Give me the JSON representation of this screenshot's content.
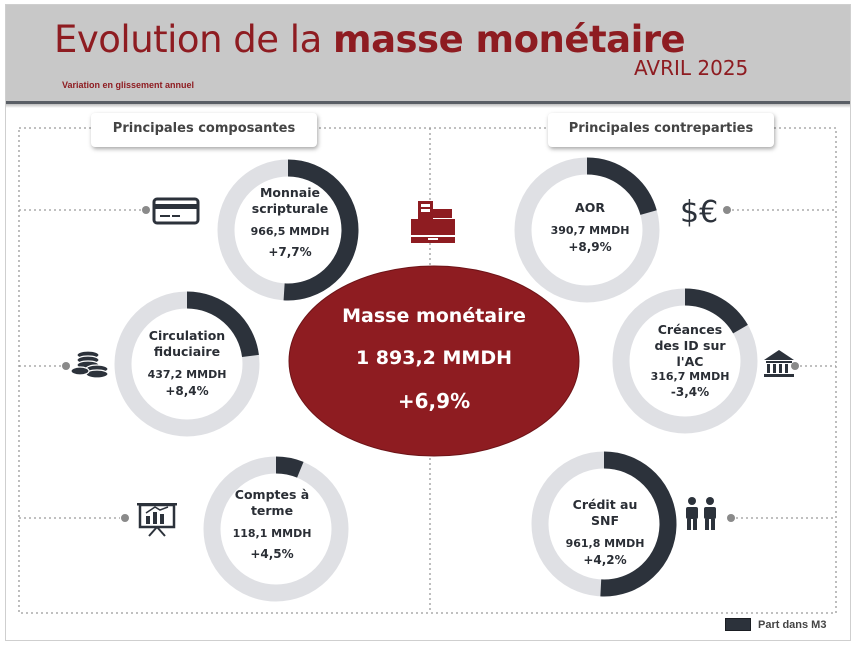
{
  "title_regular": "Evolution de la ",
  "title_bold": "masse monétaire",
  "date": "AVRIL 2025",
  "subtitle": "Variation en glissement annuel",
  "tab_left": "Principales composantes",
  "tab_right": "Principales contreparties",
  "legend_label": "Part dans M3",
  "colors": {
    "accent": "#8e1c21",
    "share": "#2c323b",
    "ring": "#dfe0e4"
  },
  "chart_data": {
    "type": "donut",
    "center": {
      "name": "Masse monétaire",
      "value": "1 893,2 MMDH",
      "growth": "+6,9%"
    },
    "series": [
      {
        "name": "Monnaie scripturale",
        "value_label": "966,5 MMDH",
        "growth": "+7,7%",
        "share": 0.51,
        "icon": "credit-card-icon"
      },
      {
        "name": "Circulation fiduciaire",
        "value_label": "437,2 MMDH",
        "growth": "+8,4%",
        "share": 0.23,
        "icon": "coins-icon"
      },
      {
        "name": "Comptes à terme",
        "value_label": "118,1 MMDH",
        "growth": "+4,5%",
        "share": 0.062,
        "icon": "presentation-board-icon"
      },
      {
        "name": "AOR",
        "value_label": "390,7 MMDH",
        "growth": "+8,9%",
        "share": 0.206,
        "icon": "currency-icon"
      },
      {
        "name": "Créances des ID sur l'AC",
        "value_label": "316,7 MMDH",
        "growth": "-3,4%",
        "share": 0.167,
        "icon": "bank-icon"
      },
      {
        "name": "Crédit au SNF",
        "value_label": "961,8 MMDH",
        "growth": "+4,2%",
        "share": 0.508,
        "icon": "people-icon"
      }
    ]
  }
}
